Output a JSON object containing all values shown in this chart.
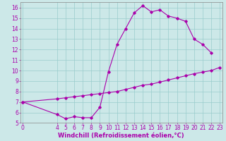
{
  "xlabel": "Windchill (Refroidissement éolien,°C)",
  "background_color": "#cce8e8",
  "line_color": "#aa00aa",
  "grid_color": "#99cccc",
  "curve1_x": [
    0,
    4,
    5,
    6,
    7,
    8,
    9,
    10,
    11,
    12,
    13,
    14,
    15,
    16,
    17,
    18,
    19,
    20,
    21,
    22
  ],
  "curve1_y": [
    7.0,
    5.8,
    5.4,
    5.6,
    5.5,
    5.5,
    6.5,
    9.9,
    12.5,
    14.0,
    15.5,
    16.2,
    15.6,
    15.8,
    15.2,
    15.0,
    14.7,
    13.0,
    12.5,
    11.7
  ],
  "curve2_x": [
    0,
    4,
    5,
    6,
    7,
    8,
    9,
    10,
    11,
    12,
    13,
    14,
    15,
    16,
    17,
    18,
    19,
    20,
    21,
    22,
    23
  ],
  "curve2_y": [
    7.0,
    7.3,
    7.4,
    7.5,
    7.6,
    7.7,
    7.8,
    7.9,
    8.0,
    8.2,
    8.4,
    8.6,
    8.7,
    8.9,
    9.1,
    9.3,
    9.5,
    9.7,
    9.85,
    10.0,
    10.3
  ],
  "ylim": [
    5,
    16.5
  ],
  "xlim": [
    -0.3,
    23.3
  ],
  "yticks": [
    5,
    6,
    7,
    8,
    9,
    10,
    11,
    12,
    13,
    14,
    15,
    16
  ],
  "xticks": [
    0,
    4,
    5,
    6,
    7,
    8,
    9,
    10,
    11,
    12,
    13,
    14,
    15,
    16,
    17,
    18,
    19,
    20,
    21,
    22,
    23
  ],
  "xlabel_fontsize": 6.0,
  "tick_fontsize": 5.5,
  "linewidth": 0.8,
  "markersize": 1.8
}
